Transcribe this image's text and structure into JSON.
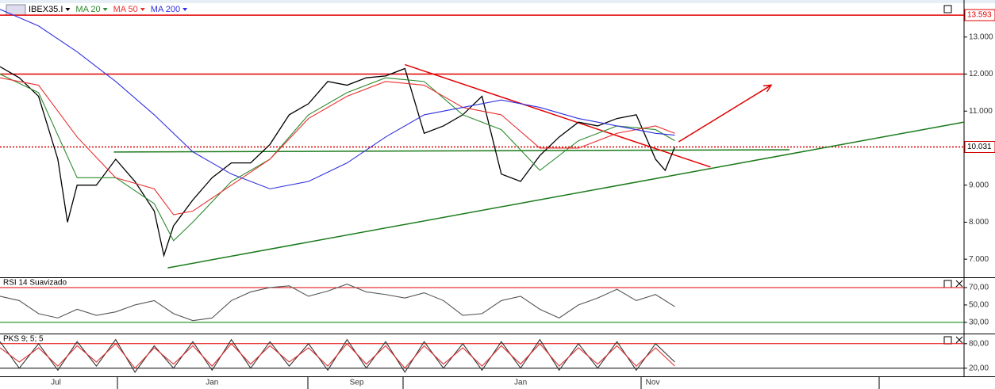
{
  "chart_data": [
    {
      "type": "line",
      "panel": "main",
      "xlim": [
        0,
        100
      ],
      "xticks": [
        {
          "value": 5.8,
          "label": "Jul"
        },
        {
          "value": 22,
          "label": "Jan"
        },
        {
          "value": 37,
          "label": "Sep"
        },
        {
          "value": 54,
          "label": "Jan"
        },
        {
          "value": 67.7,
          "label": "Nov"
        }
      ],
      "ylim": [
        6511,
        13894
      ],
      "yticks": [
        {
          "value": 7000,
          "label": "7.000"
        },
        {
          "value": 8000,
          "label": "8.000"
        },
        {
          "value": 9000,
          "label": "9.000"
        },
        {
          "value": 11000,
          "label": "11.000"
        },
        {
          "value": 12000,
          "label": "12.000"
        },
        {
          "value": 13000,
          "label": "13.000"
        }
      ],
      "series": [
        {
          "name": "IBEX35.I",
          "color": "#000000",
          "x": [
            0,
            2,
            4,
            6,
            7,
            8,
            10,
            12,
            14,
            16,
            17,
            18,
            20,
            22,
            24,
            26,
            28,
            30,
            32,
            34,
            36,
            38,
            40,
            42,
            44,
            46,
            48,
            50,
            52,
            54,
            56,
            58,
            60,
            62,
            64,
            66,
            68,
            69,
            70
          ],
          "values": [
            12200,
            11900,
            11400,
            9700,
            8000,
            9000,
            9000,
            9700,
            9100,
            8300,
            7100,
            7900,
            8600,
            9200,
            9600,
            9600,
            10100,
            10900,
            11200,
            11800,
            11700,
            11900,
            11950,
            12150,
            10400,
            10600,
            10900,
            11400,
            9300,
            9100,
            9800,
            10300,
            10700,
            10600,
            10800,
            10900,
            9700,
            9400,
            10030
          ]
        },
        {
          "name": "MA 20",
          "color": "#2e8b2e",
          "x": [
            0,
            4,
            8,
            12,
            16,
            18,
            20,
            24,
            28,
            32,
            36,
            40,
            44,
            48,
            52,
            56,
            60,
            64,
            68,
            70
          ],
          "values": [
            12000,
            11500,
            9200,
            9200,
            8500,
            7500,
            8000,
            9100,
            9700,
            10900,
            11500,
            11900,
            11800,
            10900,
            10500,
            9400,
            10200,
            10600,
            10500,
            10200
          ]
        },
        {
          "name": "MA 50",
          "color": "#e83030",
          "x": [
            0,
            4,
            8,
            12,
            16,
            18,
            20,
            24,
            28,
            32,
            36,
            40,
            44,
            48,
            52,
            56,
            60,
            64,
            68,
            70
          ],
          "values": [
            11900,
            11700,
            10300,
            9200,
            8900,
            8200,
            8300,
            9000,
            9700,
            10800,
            11400,
            11800,
            11700,
            11100,
            10900,
            10000,
            10000,
            10400,
            10600,
            10400
          ]
        },
        {
          "name": "MA 200",
          "color": "#3030e0",
          "x": [
            0,
            4,
            8,
            12,
            16,
            20,
            24,
            28,
            32,
            36,
            40,
            44,
            48,
            52,
            56,
            60,
            64,
            68,
            70
          ],
          "values": [
            13750,
            13300,
            12600,
            11800,
            10900,
            9900,
            9300,
            8900,
            9100,
            9600,
            10300,
            10900,
            11100,
            11300,
            11100,
            10800,
            10600,
            10400,
            10350
          ]
        }
      ],
      "hlines": [
        {
          "value": 13593,
          "label": "13.593",
          "color": "#e00000",
          "dotted": false
        },
        {
          "value": 12000,
          "color": "#e00000",
          "dotted": false
        },
        {
          "value": 10031,
          "label": "10.031",
          "color": "#d00000",
          "dotted": true
        }
      ],
      "trendlines": [
        {
          "x": [
            17.4,
            100
          ],
          "values": [
            6766,
            10702
          ],
          "color": "#1a7a1a"
        },
        {
          "x": [
            11.8,
            81.9
          ],
          "values": [
            9894,
            9957
          ],
          "color": "#1a7a1a"
        },
        {
          "x": [
            42,
            73.7
          ],
          "values": [
            12255,
            9489
          ],
          "color": "#e00000"
        },
        {
          "x": [
            70.4,
            80
          ],
          "values": [
            10170,
            11702
          ],
          "color": "#e00000",
          "arrow": true
        }
      ]
    },
    {
      "type": "line",
      "panel": "rsi",
      "title": "RSI 14 Suavizado",
      "xlim": [
        0,
        100
      ],
      "ylim": [
        18,
        80
      ],
      "yticks": [
        {
          "value": 30,
          "label": "30,00"
        },
        {
          "value": 50,
          "label": "50,00"
        },
        {
          "value": 70,
          "label": "70,00"
        }
      ],
      "levels": [
        {
          "value": 70,
          "color": "#e00000"
        },
        {
          "value": 30,
          "color": "#008000"
        }
      ],
      "series": [
        {
          "color": "#555555",
          "x": [
            0,
            2,
            4,
            6,
            8,
            10,
            12,
            14,
            16,
            18,
            20,
            22,
            24,
            26,
            28,
            30,
            32,
            34,
            36,
            38,
            40,
            42,
            44,
            46,
            48,
            50,
            52,
            54,
            56,
            58,
            60,
            62,
            64,
            66,
            68,
            70
          ],
          "values": [
            60,
            55,
            40,
            35,
            45,
            38,
            42,
            50,
            55,
            40,
            32,
            35,
            55,
            65,
            70,
            72,
            60,
            66,
            74,
            65,
            62,
            58,
            64,
            55,
            38,
            40,
            55,
            60,
            45,
            35,
            50,
            58,
            68,
            55,
            62,
            48
          ]
        }
      ]
    },
    {
      "type": "line",
      "panel": "pks",
      "title": "PKS 9; 5; 5",
      "xlim": [
        0,
        100
      ],
      "ylim": [
        0,
        101
      ],
      "yticks": [
        {
          "value": 20,
          "label": "20,00"
        },
        {
          "value": 80,
          "label": "80,00"
        }
      ],
      "levels": [
        {
          "value": 80,
          "color": "#e00000"
        },
        {
          "value": 20,
          "color": "#000000"
        }
      ],
      "series": [
        {
          "color": "#333333",
          "x": [
            0,
            2,
            4,
            6,
            8,
            10,
            12,
            14,
            16,
            18,
            20,
            22,
            24,
            26,
            28,
            30,
            32,
            34,
            36,
            38,
            40,
            42,
            44,
            46,
            48,
            50,
            52,
            54,
            56,
            58,
            60,
            62,
            64,
            66,
            68,
            70
          ],
          "values": [
            85,
            20,
            80,
            15,
            85,
            25,
            90,
            10,
            75,
            20,
            85,
            15,
            90,
            20,
            85,
            25,
            80,
            15,
            90,
            20,
            85,
            10,
            85,
            20,
            80,
            15,
            85,
            20,
            90,
            15,
            80,
            20,
            85,
            15,
            80,
            35
          ]
        },
        {
          "color": "#e03030",
          "x": [
            0,
            2,
            4,
            6,
            8,
            10,
            12,
            14,
            16,
            18,
            20,
            22,
            24,
            26,
            28,
            30,
            32,
            34,
            36,
            38,
            40,
            42,
            44,
            46,
            48,
            50,
            52,
            54,
            56,
            58,
            60,
            62,
            64,
            66,
            68,
            70
          ],
          "values": [
            70,
            35,
            70,
            25,
            75,
            35,
            80,
            20,
            70,
            30,
            75,
            25,
            80,
            30,
            75,
            35,
            70,
            25,
            80,
            30,
            75,
            20,
            75,
            30,
            70,
            25,
            75,
            30,
            80,
            25,
            70,
            30,
            75,
            25,
            70,
            25
          ]
        }
      ]
    }
  ]
}
